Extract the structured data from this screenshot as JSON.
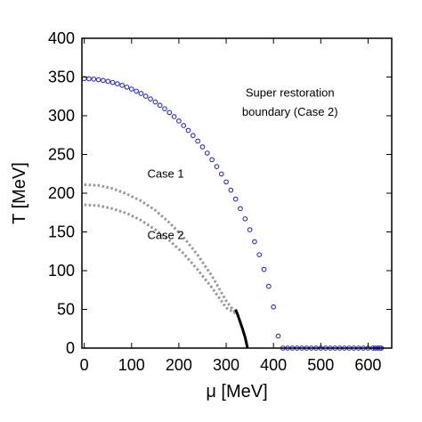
{
  "chart_data": {
    "type": "scatter",
    "xlabel": "μ [MeV]",
    "ylabel": "T [MeV]",
    "xlim": [
      -5,
      650
    ],
    "ylim": [
      0,
      400
    ],
    "xticks": [
      0,
      100,
      200,
      300,
      400,
      500,
      600
    ],
    "yticks": [
      0,
      50,
      100,
      150,
      200,
      250,
      300,
      350,
      400
    ],
    "grid": false,
    "annotations": [
      {
        "text": "Super restoration",
        "x": 435,
        "y": 325
      },
      {
        "text": "boundary (Case 2)",
        "x": 435,
        "y": 300
      },
      {
        "text": "Case 1",
        "x": 172,
        "y": 220
      },
      {
        "text": "Case 2",
        "x": 172,
        "y": 141
      }
    ],
    "series": [
      {
        "style": "circles",
        "color": "#2b2bcc",
        "x": [
          0,
          10,
          20,
          30,
          40,
          50,
          60,
          70,
          80,
          90,
          100,
          110,
          120,
          130,
          140,
          150,
          160,
          170,
          180,
          190,
          200,
          210,
          220,
          230,
          240,
          250,
          260,
          270,
          280,
          290,
          300,
          310,
          320,
          330,
          340,
          350,
          360,
          370,
          380,
          390,
          400,
          410,
          420,
          430,
          440,
          450,
          460,
          470,
          480,
          490,
          500,
          510,
          520,
          530,
          540,
          550,
          560,
          570,
          580,
          590,
          600,
          610,
          615,
          620,
          625,
          628
        ],
        "y": [
          348.0,
          347.7,
          347.3,
          346.5,
          345.6,
          344.4,
          342.9,
          341.2,
          339.2,
          337.0,
          334.5,
          331.7,
          328.7,
          325.3,
          321.7,
          317.8,
          313.5,
          309.0,
          304.1,
          298.9,
          293.3,
          287.4,
          281.1,
          274.4,
          267.3,
          259.8,
          251.8,
          243.3,
          234.3,
          224.8,
          214.6,
          203.9,
          192.4,
          180.1,
          166.9,
          152.8,
          137.4,
          120.5,
          101.6,
          79.8,
          53.2,
          15.5,
          0,
          0,
          0,
          0,
          0,
          0,
          0,
          0,
          0,
          0,
          0,
          0,
          0,
          0,
          0,
          0,
          0,
          0,
          0,
          0,
          0,
          0,
          0,
          0
        ]
      },
      {
        "name": "Case 1",
        "style": "dotted",
        "color": "#999999",
        "x": [
          0,
          30,
          60,
          90,
          120,
          150,
          180,
          210,
          240,
          270,
          300,
          320
        ],
        "y": [
          211,
          210,
          206,
          199,
          190,
          178,
          162,
          143,
          120,
          93,
          61,
          45
        ]
      },
      {
        "name": "Case 2",
        "style": "dotted",
        "color": "#999999",
        "x": [
          0,
          30,
          60,
          90,
          120,
          150,
          180,
          210,
          240,
          270,
          300,
          320
        ],
        "y": [
          185,
          184,
          180,
          174,
          165,
          153,
          139,
          122,
          101,
          78,
          52,
          45
        ]
      },
      {
        "style": "solid",
        "color": "#000000",
        "x": [
          320,
          325,
          330,
          335,
          340,
          343,
          345
        ],
        "y": [
          50,
          42,
          33,
          24,
          14,
          6,
          0
        ]
      }
    ]
  }
}
